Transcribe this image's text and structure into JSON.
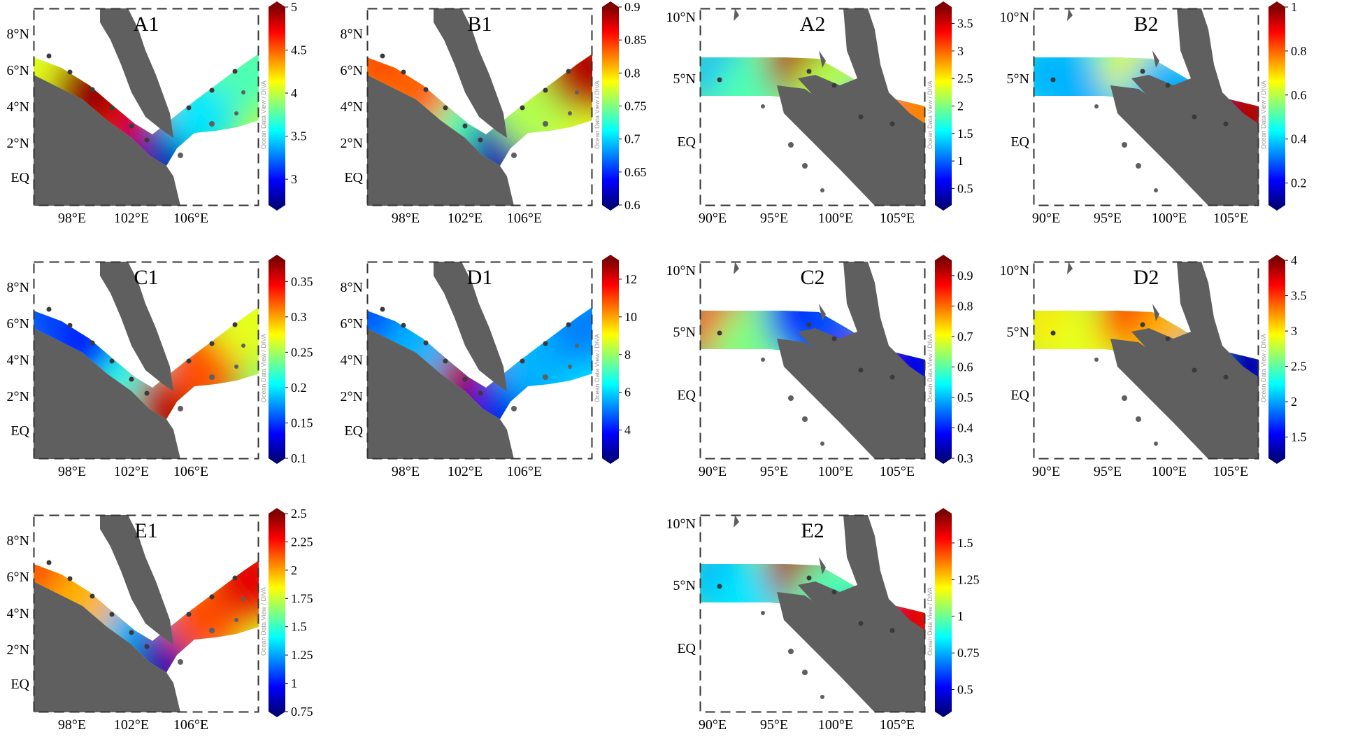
{
  "colors": {
    "land": "#5f5f5f",
    "station": "#3a3a3a",
    "frame": "#333333",
    "colormap": [
      "#00007f",
      "#0000ff",
      "#0080ff",
      "#00ffff",
      "#80ff80",
      "#ffff00",
      "#ff8000",
      "#ff0000",
      "#7f0000"
    ]
  },
  "colorbar_watermark": "Ocean Data View / DIVA",
  "panels": [
    {
      "id": "A1",
      "title": "A1",
      "region": "malacca",
      "x_ticks": [
        "98°E",
        "102°E",
        "106°E"
      ],
      "y_ticks": [
        "8°N",
        "6°N",
        "4°N",
        "2°N",
        "EQ"
      ],
      "colorbar": {
        "min": 2.7,
        "max": 5,
        "ticks": [
          "3",
          "3.5",
          "4",
          "4.5",
          "5"
        ],
        "tick_values": [
          3,
          3.5,
          4,
          4.5,
          5
        ]
      },
      "pattern": {
        "northwest": 0.6,
        "mid_west": 0.98,
        "south_strait": 0.9,
        "tip": 0.05,
        "east": 0.35,
        "far_east": 0.45
      }
    },
    {
      "id": "B1",
      "title": "B1",
      "region": "malacca",
      "x_ticks": [
        "98°E",
        "102°E",
        "106°E"
      ],
      "y_ticks": [
        "8°N",
        "6°N",
        "4°N",
        "2°N",
        "EQ"
      ],
      "colorbar": {
        "min": 0.6,
        "max": 0.9,
        "ticks": [
          "0.6",
          "0.65",
          "0.7",
          "0.75",
          "0.8",
          "0.85",
          "0.9"
        ],
        "tick_values": [
          0.6,
          0.65,
          0.7,
          0.75,
          0.8,
          0.85,
          0.9
        ]
      },
      "pattern": {
        "northwest": 0.8,
        "mid_west": 0.78,
        "south_strait": 0.45,
        "tip": 0.05,
        "east": 0.55,
        "far_east": 0.95
      }
    },
    {
      "id": "C1",
      "title": "C1",
      "region": "malacca",
      "x_ticks": [
        "98°E",
        "102°E",
        "106°E"
      ],
      "y_ticks": [
        "8°N",
        "6°N",
        "4°N",
        "2°N",
        "EQ"
      ],
      "colorbar": {
        "min": 0.1,
        "max": 0.38,
        "ticks": [
          "0.1",
          "0.15",
          "0.2",
          "0.25",
          "0.3",
          "0.35"
        ],
        "tick_values": [
          0.1,
          0.15,
          0.2,
          0.25,
          0.3,
          0.35
        ]
      },
      "pattern": {
        "northwest": 0.2,
        "mid_west": 0.15,
        "south_strait": 0.4,
        "tip": 0.95,
        "east": 0.8,
        "far_east": 0.6
      }
    },
    {
      "id": "D1",
      "title": "D1",
      "region": "malacca",
      "x_ticks": [
        "98°E",
        "102°E",
        "106°E"
      ],
      "y_ticks": [
        "8°N",
        "6°N",
        "4°N",
        "2°N",
        "EQ"
      ],
      "colorbar": {
        "min": 2.5,
        "max": 13,
        "ticks": [
          "4",
          "6",
          "8",
          "10",
          "12"
        ],
        "tick_values": [
          4,
          6,
          8,
          10,
          12
        ]
      },
      "pattern": {
        "northwest": 0.2,
        "mid_west": 0.3,
        "south_strait": 0.95,
        "tip": 0.1,
        "east": 0.3,
        "far_east": 0.25
      }
    },
    {
      "id": "E1",
      "title": "E1",
      "region": "malacca",
      "x_ticks": [
        "98°E",
        "102°E",
        "106°E"
      ],
      "y_ticks": [
        "8°N",
        "6°N",
        "4°N",
        "2°N",
        "EQ"
      ],
      "colorbar": {
        "min": 0.75,
        "max": 2.5,
        "ticks": [
          "0.75",
          "1",
          "1.25",
          "1.5",
          "1.75",
          "2",
          "2.25",
          "2.5"
        ],
        "tick_values": [
          0.75,
          1,
          1.25,
          1.5,
          1.75,
          2,
          2.25,
          2.5
        ]
      },
      "pattern": {
        "northwest": 0.8,
        "mid_west": 0.7,
        "south_strait": 0.3,
        "tip": 0.05,
        "east": 0.8,
        "far_east": 0.9
      }
    },
    {
      "id": "A2",
      "title": "A2",
      "region": "sumatra",
      "x_ticks": [
        "90°E",
        "95°E",
        "100°E",
        "105°E"
      ],
      "y_ticks": [
        "10°N",
        "5°N",
        "EQ"
      ],
      "colorbar": {
        "min": 0.2,
        "max": 3.8,
        "ticks": [
          "0.5",
          "1",
          "1.5",
          "2",
          "2.5",
          "3",
          "3.5"
        ],
        "tick_values": [
          0.5,
          1,
          1.5,
          2,
          2.5,
          3,
          3.5
        ]
      },
      "pattern": {
        "far_west": 0.3,
        "west_south": 0.45,
        "north_centre": 0.95,
        "centre": 0.55,
        "strait": 0.15,
        "east": 0.75
      }
    },
    {
      "id": "B2",
      "title": "B2",
      "region": "sumatra",
      "x_ticks": [
        "90°E",
        "95°E",
        "100°E",
        "105°E"
      ],
      "y_ticks": [
        "10°N",
        "5°N",
        "EQ"
      ],
      "colorbar": {
        "min": 0.1,
        "max": 1.0,
        "ticks": [
          "0.2",
          "0.4",
          "0.6",
          "0.8",
          "1"
        ],
        "tick_values": [
          0.2,
          0.4,
          0.6,
          0.8,
          1
        ]
      },
      "pattern": {
        "far_west": 0.3,
        "west_south": 0.3,
        "north_centre": 0.6,
        "centre": 0.3,
        "strait": 0.05,
        "east": 0.95
      }
    },
    {
      "id": "C2",
      "title": "C2",
      "region": "sumatra",
      "x_ticks": [
        "90°E",
        "95°E",
        "100°E",
        "105°E"
      ],
      "y_ticks": [
        "10°N",
        "5°N",
        "EQ"
      ],
      "colorbar": {
        "min": 0.3,
        "max": 0.95,
        "ticks": [
          "0.3",
          "0.4",
          "0.5",
          "0.6",
          "0.7",
          "0.8",
          "0.9"
        ],
        "tick_values": [
          0.3,
          0.4,
          0.5,
          0.6,
          0.7,
          0.8,
          0.9
        ]
      },
      "pattern": {
        "far_west": 0.85,
        "west_south": 0.5,
        "north_centre": 0.15,
        "centre": 0.2,
        "strait": 0.95,
        "east": 0.1
      }
    },
    {
      "id": "D2",
      "title": "D2",
      "region": "sumatra",
      "x_ticks": [
        "90°E",
        "95°E",
        "100°E",
        "105°E"
      ],
      "y_ticks": [
        "10°N",
        "5°N",
        "EQ"
      ],
      "colorbar": {
        "min": 1.2,
        "max": 4.0,
        "ticks": [
          "1.5",
          "2",
          "2.5",
          "3",
          "3.5",
          "4"
        ],
        "tick_values": [
          1.5,
          2,
          2.5,
          3,
          3.5,
          4
        ]
      },
      "pattern": {
        "far_west": 0.65,
        "west_south": 0.6,
        "north_centre": 0.85,
        "centre": 0.7,
        "strait": 0.3,
        "east": 0.05
      }
    },
    {
      "id": "E2",
      "title": "E2",
      "region": "sumatra",
      "x_ticks": [
        "90°E",
        "95°E",
        "100°E",
        "105°E"
      ],
      "y_ticks": [
        "10°N",
        "5°N",
        "EQ"
      ],
      "colorbar": {
        "min": 0.35,
        "max": 1.7,
        "ticks": [
          "0.5",
          "0.75",
          "1",
          "1.25",
          "1.5"
        ],
        "tick_values": [
          0.5,
          0.75,
          1,
          1.25,
          1.5
        ]
      },
      "pattern": {
        "far_west": 0.3,
        "west_south": 0.35,
        "north_centre": 0.95,
        "centre": 0.45,
        "strait": 0.1,
        "east": 0.9
      }
    }
  ]
}
